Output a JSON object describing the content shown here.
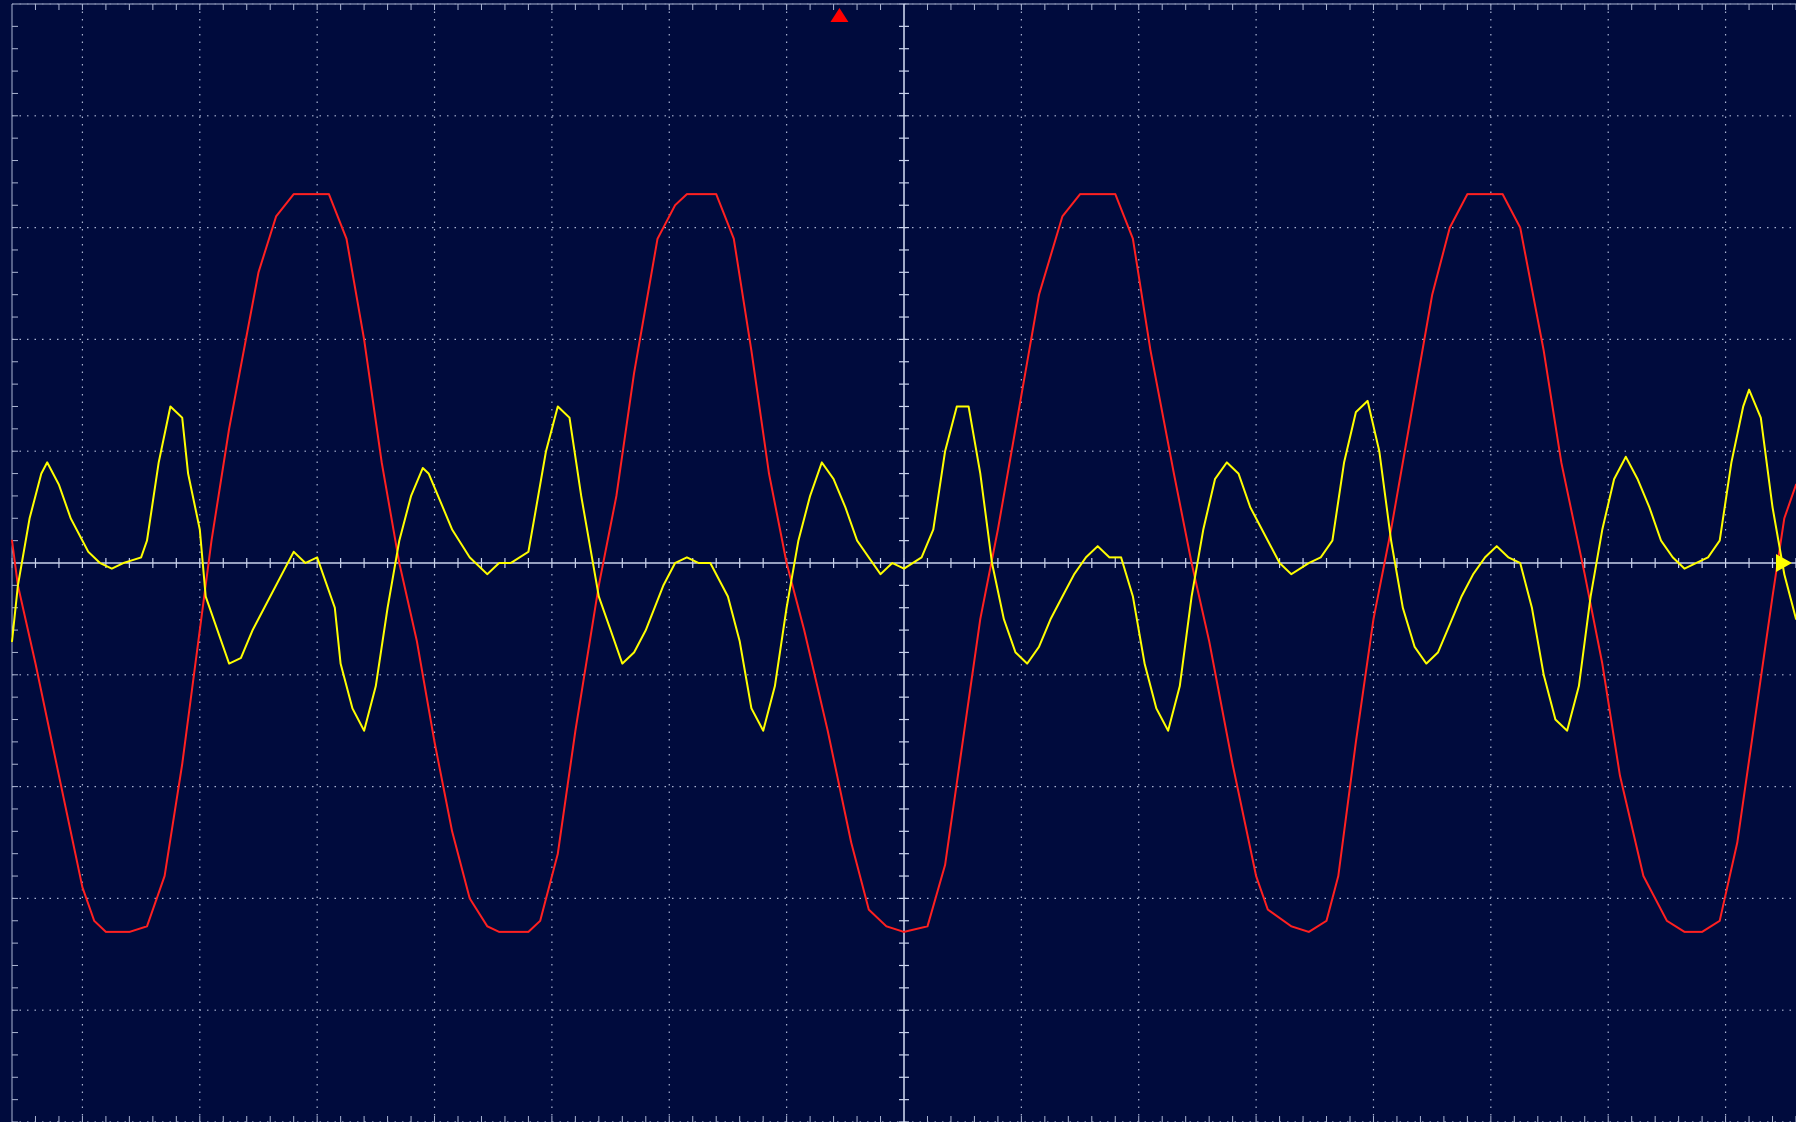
{
  "display": {
    "background": "#000b3d",
    "grid_color": "#aab4d2",
    "axis_color": "#c8d2ec"
  },
  "chart_data": {
    "type": "line",
    "title": "",
    "xlabel": "",
    "ylabel": "",
    "grid": true,
    "x_divisions": 15.2,
    "y_divisions": 10,
    "xlim": [
      -7.6,
      7.6
    ],
    "ylim": [
      -5,
      5
    ],
    "trigger_marker": {
      "x": -0.55,
      "color": "#ff0000"
    },
    "ground_marker": {
      "y": 0,
      "color": "#ffff00"
    },
    "series": [
      {
        "color": "#ff2020",
        "points": [
          [
            -7.6,
            0.2
          ],
          [
            -7.55,
            -0.2
          ],
          [
            -7.4,
            -0.9
          ],
          [
            -7.2,
            -1.9
          ],
          [
            -7.0,
            -2.9
          ],
          [
            -6.9,
            -3.2
          ],
          [
            -6.8,
            -3.3
          ],
          [
            -6.6,
            -3.3
          ],
          [
            -6.45,
            -3.25
          ],
          [
            -6.3,
            -2.8
          ],
          [
            -6.15,
            -1.8
          ],
          [
            -6.0,
            -0.6
          ],
          [
            -5.9,
            0.2
          ],
          [
            -5.75,
            1.2
          ],
          [
            -5.5,
            2.6
          ],
          [
            -5.35,
            3.1
          ],
          [
            -5.2,
            3.3
          ],
          [
            -4.9,
            3.3
          ],
          [
            -4.75,
            2.9
          ],
          [
            -4.6,
            2.0
          ],
          [
            -4.45,
            0.9
          ],
          [
            -4.3,
            0.0
          ],
          [
            -4.15,
            -0.7
          ],
          [
            -4.0,
            -1.6
          ],
          [
            -3.85,
            -2.4
          ],
          [
            -3.7,
            -3.0
          ],
          [
            -3.55,
            -3.25
          ],
          [
            -3.45,
            -3.3
          ],
          [
            -3.2,
            -3.3
          ],
          [
            -3.1,
            -3.2
          ],
          [
            -2.95,
            -2.6
          ],
          [
            -2.8,
            -1.5
          ],
          [
            -2.6,
            -0.2
          ],
          [
            -2.45,
            0.6
          ],
          [
            -2.3,
            1.7
          ],
          [
            -2.1,
            2.9
          ],
          [
            -1.95,
            3.2
          ],
          [
            -1.85,
            3.3
          ],
          [
            -1.6,
            3.3
          ],
          [
            -1.45,
            2.9
          ],
          [
            -1.3,
            1.9
          ],
          [
            -1.15,
            0.8
          ],
          [
            -1.0,
            0.0
          ],
          [
            -0.85,
            -0.6
          ],
          [
            -0.65,
            -1.5
          ],
          [
            -0.45,
            -2.5
          ],
          [
            -0.3,
            -3.1
          ],
          [
            -0.15,
            -3.25
          ],
          [
            0.0,
            -3.3
          ],
          [
            0.2,
            -3.25
          ],
          [
            0.35,
            -2.7
          ],
          [
            0.5,
            -1.6
          ],
          [
            0.65,
            -0.5
          ],
          [
            0.8,
            0.3
          ],
          [
            0.95,
            1.2
          ],
          [
            1.15,
            2.4
          ],
          [
            1.35,
            3.1
          ],
          [
            1.5,
            3.3
          ],
          [
            1.8,
            3.3
          ],
          [
            1.95,
            2.9
          ],
          [
            2.1,
            1.9
          ],
          [
            2.3,
            0.8
          ],
          [
            2.45,
            0.0
          ],
          [
            2.6,
            -0.7
          ],
          [
            2.8,
            -1.8
          ],
          [
            3.0,
            -2.8
          ],
          [
            3.1,
            -3.1
          ],
          [
            3.3,
            -3.25
          ],
          [
            3.45,
            -3.3
          ],
          [
            3.6,
            -3.2
          ],
          [
            3.7,
            -2.8
          ],
          [
            3.85,
            -1.6
          ],
          [
            4.0,
            -0.5
          ],
          [
            4.15,
            0.3
          ],
          [
            4.3,
            1.2
          ],
          [
            4.5,
            2.4
          ],
          [
            4.65,
            3.0
          ],
          [
            4.8,
            3.3
          ],
          [
            5.1,
            3.3
          ],
          [
            5.25,
            3.0
          ],
          [
            5.45,
            1.9
          ],
          [
            5.6,
            0.9
          ],
          [
            5.8,
            -0.1
          ],
          [
            5.95,
            -0.9
          ],
          [
            6.1,
            -1.9
          ],
          [
            6.3,
            -2.8
          ],
          [
            6.5,
            -3.2
          ],
          [
            6.65,
            -3.3
          ],
          [
            6.8,
            -3.3
          ],
          [
            6.95,
            -3.2
          ],
          [
            7.1,
            -2.5
          ],
          [
            7.25,
            -1.4
          ],
          [
            7.4,
            -0.3
          ],
          [
            7.5,
            0.4
          ],
          [
            7.6,
            0.7
          ]
        ]
      },
      {
        "color": "#ffff00",
        "points": [
          [
            -7.6,
            -0.7
          ],
          [
            -7.55,
            -0.2
          ],
          [
            -7.45,
            0.4
          ],
          [
            -7.35,
            0.8
          ],
          [
            -7.3,
            0.9
          ],
          [
            -7.2,
            0.7
          ],
          [
            -7.1,
            0.4
          ],
          [
            -6.95,
            0.1
          ],
          [
            -6.85,
            0.0
          ],
          [
            -6.75,
            -0.05
          ],
          [
            -6.65,
            0.0
          ],
          [
            -6.5,
            0.05
          ],
          [
            -6.45,
            0.2
          ],
          [
            -6.35,
            0.9
          ],
          [
            -6.25,
            1.4
          ],
          [
            -6.15,
            1.3
          ],
          [
            -6.1,
            0.8
          ],
          [
            -6.0,
            0.3
          ],
          [
            -5.95,
            -0.3
          ],
          [
            -5.85,
            -0.6
          ],
          [
            -5.75,
            -0.9
          ],
          [
            -5.65,
            -0.85
          ],
          [
            -5.55,
            -0.6
          ],
          [
            -5.4,
            -0.3
          ],
          [
            -5.3,
            -0.1
          ],
          [
            -5.2,
            0.1
          ],
          [
            -5.1,
            0.0
          ],
          [
            -5.0,
            0.05
          ],
          [
            -4.95,
            -0.1
          ],
          [
            -4.85,
            -0.4
          ],
          [
            -4.8,
            -0.9
          ],
          [
            -4.7,
            -1.3
          ],
          [
            -4.6,
            -1.5
          ],
          [
            -4.5,
            -1.1
          ],
          [
            -4.4,
            -0.4
          ],
          [
            -4.3,
            0.2
          ],
          [
            -4.2,
            0.6
          ],
          [
            -4.1,
            0.85
          ],
          [
            -4.05,
            0.8
          ],
          [
            -3.95,
            0.55
          ],
          [
            -3.85,
            0.3
          ],
          [
            -3.7,
            0.05
          ],
          [
            -3.55,
            -0.1
          ],
          [
            -3.45,
            0.0
          ],
          [
            -3.35,
            0.0
          ],
          [
            -3.2,
            0.1
          ],
          [
            -3.15,
            0.4
          ],
          [
            -3.05,
            1.0
          ],
          [
            -2.95,
            1.4
          ],
          [
            -2.85,
            1.3
          ],
          [
            -2.75,
            0.6
          ],
          [
            -2.6,
            -0.3
          ],
          [
            -2.5,
            -0.6
          ],
          [
            -2.4,
            -0.9
          ],
          [
            -2.3,
            -0.8
          ],
          [
            -2.2,
            -0.6
          ],
          [
            -2.05,
            -0.2
          ],
          [
            -1.95,
            0.0
          ],
          [
            -1.85,
            0.05
          ],
          [
            -1.75,
            0.0
          ],
          [
            -1.65,
            0.0
          ],
          [
            -1.5,
            -0.3
          ],
          [
            -1.4,
            -0.7
          ],
          [
            -1.3,
            -1.3
          ],
          [
            -1.2,
            -1.5
          ],
          [
            -1.1,
            -1.1
          ],
          [
            -1.0,
            -0.4
          ],
          [
            -0.9,
            0.2
          ],
          [
            -0.8,
            0.6
          ],
          [
            -0.7,
            0.9
          ],
          [
            -0.6,
            0.75
          ],
          [
            -0.5,
            0.5
          ],
          [
            -0.4,
            0.2
          ],
          [
            -0.3,
            0.05
          ],
          [
            -0.2,
            -0.1
          ],
          [
            -0.1,
            0.0
          ],
          [
            0.0,
            -0.05
          ],
          [
            0.15,
            0.05
          ],
          [
            0.25,
            0.3
          ],
          [
            0.35,
            1.0
          ],
          [
            0.45,
            1.4
          ],
          [
            0.55,
            1.4
          ],
          [
            0.65,
            0.8
          ],
          [
            0.75,
            0.0
          ],
          [
            0.85,
            -0.5
          ],
          [
            0.95,
            -0.8
          ],
          [
            1.05,
            -0.9
          ],
          [
            1.15,
            -0.75
          ],
          [
            1.25,
            -0.5
          ],
          [
            1.35,
            -0.3
          ],
          [
            1.45,
            -0.1
          ],
          [
            1.55,
            0.05
          ],
          [
            1.65,
            0.15
          ],
          [
            1.75,
            0.05
          ],
          [
            1.85,
            0.05
          ],
          [
            1.95,
            -0.3
          ],
          [
            2.05,
            -0.9
          ],
          [
            2.15,
            -1.3
          ],
          [
            2.25,
            -1.5
          ],
          [
            2.35,
            -1.1
          ],
          [
            2.45,
            -0.3
          ],
          [
            2.55,
            0.3
          ],
          [
            2.65,
            0.75
          ],
          [
            2.75,
            0.9
          ],
          [
            2.85,
            0.8
          ],
          [
            2.95,
            0.5
          ],
          [
            3.1,
            0.2
          ],
          [
            3.2,
            0.0
          ],
          [
            3.3,
            -0.1
          ],
          [
            3.45,
            0.0
          ],
          [
            3.55,
            0.05
          ],
          [
            3.65,
            0.2
          ],
          [
            3.75,
            0.9
          ],
          [
            3.85,
            1.35
          ],
          [
            3.95,
            1.45
          ],
          [
            4.05,
            1.0
          ],
          [
            4.15,
            0.2
          ],
          [
            4.25,
            -0.4
          ],
          [
            4.35,
            -0.75
          ],
          [
            4.45,
            -0.9
          ],
          [
            4.55,
            -0.8
          ],
          [
            4.65,
            -0.55
          ],
          [
            4.75,
            -0.3
          ],
          [
            4.85,
            -0.1
          ],
          [
            4.95,
            0.05
          ],
          [
            5.05,
            0.15
          ],
          [
            5.15,
            0.05
          ],
          [
            5.25,
            0.0
          ],
          [
            5.35,
            -0.4
          ],
          [
            5.45,
            -1.0
          ],
          [
            5.55,
            -1.4
          ],
          [
            5.65,
            -1.5
          ],
          [
            5.75,
            -1.1
          ],
          [
            5.85,
            -0.3
          ],
          [
            5.95,
            0.3
          ],
          [
            6.05,
            0.75
          ],
          [
            6.15,
            0.95
          ],
          [
            6.25,
            0.75
          ],
          [
            6.35,
            0.5
          ],
          [
            6.45,
            0.2
          ],
          [
            6.55,
            0.05
          ],
          [
            6.65,
            -0.05
          ],
          [
            6.75,
            0.0
          ],
          [
            6.85,
            0.05
          ],
          [
            6.95,
            0.2
          ],
          [
            7.05,
            0.9
          ],
          [
            7.15,
            1.4
          ],
          [
            7.2,
            1.55
          ],
          [
            7.3,
            1.3
          ],
          [
            7.4,
            0.5
          ],
          [
            7.5,
            -0.1
          ],
          [
            7.6,
            -0.5
          ]
        ]
      }
    ]
  }
}
